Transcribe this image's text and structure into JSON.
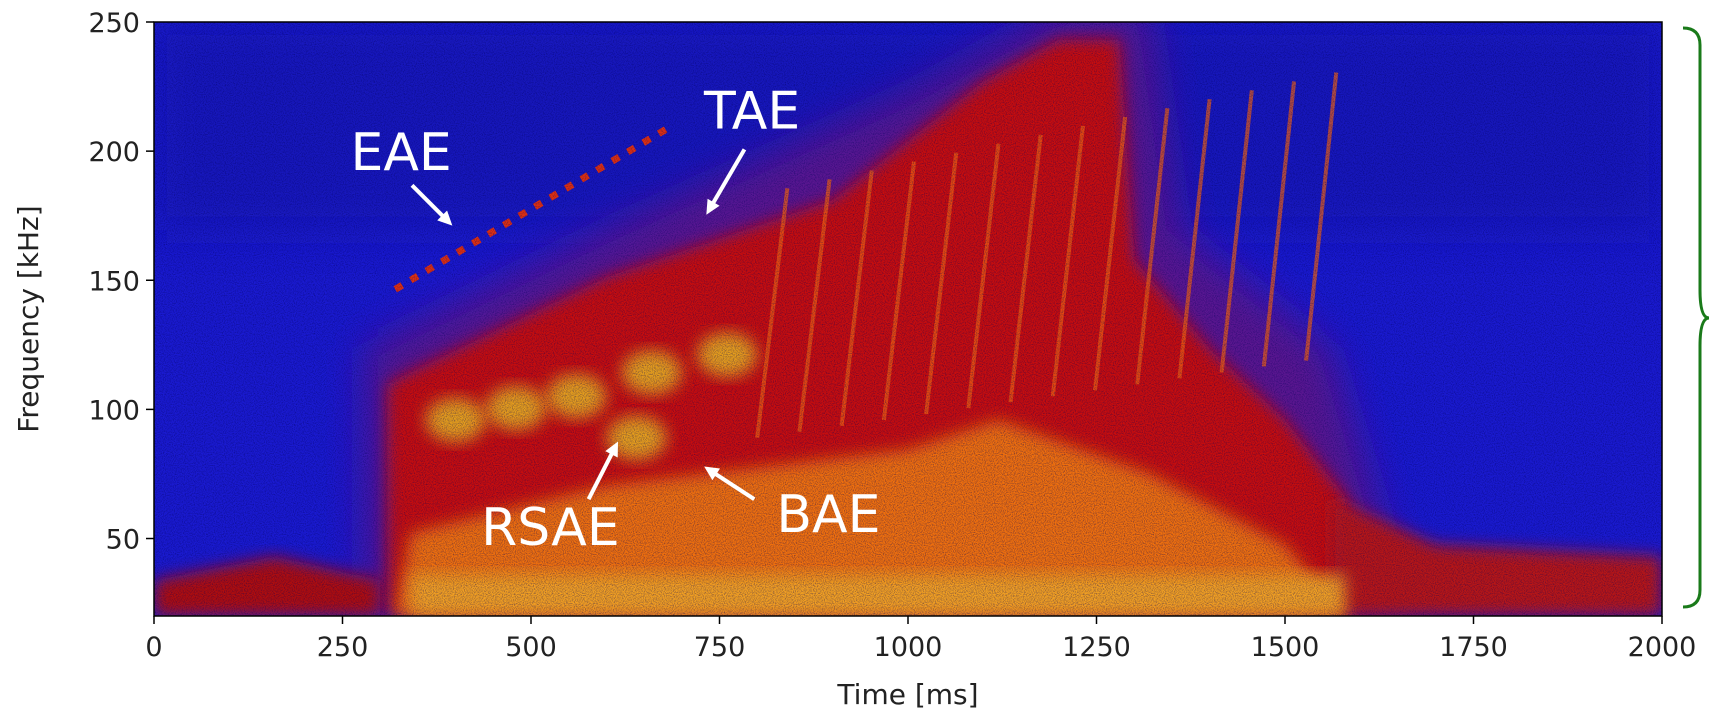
{
  "chart_data": {
    "type": "spectrogram",
    "x_label": "Time [ms]",
    "y_label": "Frequency [kHz]",
    "xlim": [
      0,
      2000
    ],
    "xticks": [
      0,
      250,
      500,
      750,
      1000,
      1250,
      1500,
      1750,
      2000
    ],
    "ylim": [
      20,
      250
    ],
    "yticks": [
      50,
      100,
      150,
      200,
      250
    ],
    "annotations": [
      "EAE",
      "TAE",
      "RSAE",
      "BAE"
    ]
  }
}
